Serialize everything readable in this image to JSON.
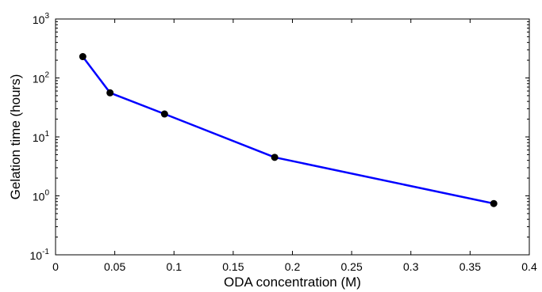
{
  "chart_data": {
    "type": "line",
    "xlabel": "ODA concentration (M)",
    "ylabel": "Gelation time (hours)",
    "xlim": [
      0,
      0.4
    ],
    "ylim": [
      0.1,
      1000
    ],
    "yscale": "log",
    "grid": false,
    "x_ticks": [
      "0",
      "0.05",
      "0.1",
      "0.15",
      "0.2",
      "0.25",
      "0.3",
      "0.35",
      "0.4"
    ],
    "y_ticks": [
      {
        "base": "10",
        "exp": "-1"
      },
      {
        "base": "10",
        "exp": "0"
      },
      {
        "base": "10",
        "exp": "1"
      },
      {
        "base": "10",
        "exp": "2"
      },
      {
        "base": "10",
        "exp": "3"
      }
    ],
    "series": [
      {
        "x": [
          0.023,
          0.046,
          0.092,
          0.185,
          0.37
        ],
        "y": [
          230,
          56,
          24.5,
          4.5,
          0.74
        ],
        "color": "#0000ff",
        "marker_color": "#000000"
      }
    ]
  }
}
